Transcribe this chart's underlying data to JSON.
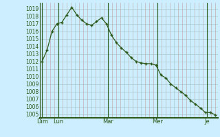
{
  "background_color": "#cceeff",
  "grid_minor_color": "#c0a0a0",
  "grid_major_color": "#a0c0c0",
  "line_color": "#2d5a1b",
  "marker_color": "#2d5a1b",
  "x_tick_labels": [
    "Dim",
    "Lun",
    "Mar",
    "Mer",
    "Je"
  ],
  "yticks": [
    1005,
    1006,
    1007,
    1008,
    1009,
    1010,
    1011,
    1012,
    1013,
    1014,
    1015,
    1016,
    1017,
    1018,
    1019
  ],
  "ymin": 1004.5,
  "ymax": 1019.8,
  "pressure_values": [
    1012.0,
    1013.5,
    1016.0,
    1017.0,
    1017.2,
    1018.2,
    1019.2,
    1018.2,
    1017.5,
    1017.0,
    1016.8,
    1017.3,
    1017.8,
    1017.0,
    1015.5,
    1014.5,
    1013.8,
    1013.2,
    1012.5,
    1012.0,
    1011.8,
    1011.7,
    1011.7,
    1011.5,
    1010.2,
    1009.8,
    1009.0,
    1008.5,
    1008.0,
    1007.5,
    1006.8,
    1006.3,
    1005.8,
    1005.2,
    1005.2,
    1004.9
  ],
  "day_x_positions": [
    0,
    1,
    4,
    7,
    10
  ],
  "total_days": 10.5,
  "label_fontsize": 6,
  "tick_fontsize": 5.5
}
